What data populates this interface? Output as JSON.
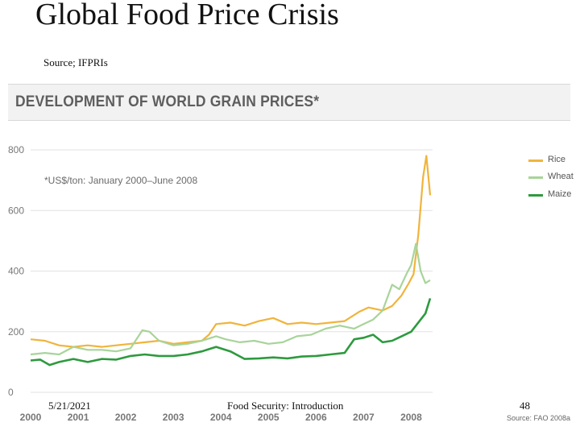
{
  "slide": {
    "title": "Global Food Price Crisis",
    "source": "Source; IFPRIs",
    "date": "5/21/2021",
    "footer_center": "Food Security: Introduction",
    "page_number": "48"
  },
  "colors": {
    "rice": "#f0b43c",
    "wheat": "#a8d49a",
    "maize": "#2e9a3e",
    "banner_bg": "#f2f2f2",
    "banner_text": "#5e5e5e",
    "grid": "#e2e2e2"
  },
  "chart_data": {
    "type": "line",
    "title": "DEVELOPMENT OF WORLD GRAIN PRICES*",
    "subtitle": "*US$/ton: January 2000–June 2008",
    "credit": "Source: FAO 2008a",
    "y_ticks": [
      "0",
      "200",
      "400",
      "600",
      "800"
    ],
    "ylim": [
      0,
      800
    ],
    "x_ticks": [
      "2000",
      "2001",
      "2002",
      "2003",
      "2004",
      "2005",
      "2006",
      "2007",
      "2008"
    ],
    "xlim": [
      2000.0,
      2008.45
    ],
    "grid": true,
    "legend_position": "right",
    "series": [
      {
        "name": "Rice",
        "x": [
          2000.0,
          2000.3,
          2000.6,
          2000.9,
          2001.2,
          2001.5,
          2001.8,
          2002.1,
          2002.4,
          2002.7,
          2003.0,
          2003.3,
          2003.6,
          2003.75,
          2003.9,
          2004.2,
          2004.5,
          2004.8,
          2005.1,
          2005.4,
          2005.7,
          2006.0,
          2006.3,
          2006.6,
          2006.9,
          2007.1,
          2007.4,
          2007.6,
          2007.8,
          2007.95,
          2008.05,
          2008.15,
          2008.25,
          2008.32,
          2008.4
        ],
        "y": [
          175,
          170,
          155,
          150,
          155,
          150,
          155,
          160,
          165,
          170,
          160,
          165,
          170,
          190,
          225,
          230,
          220,
          235,
          245,
          225,
          230,
          225,
          230,
          235,
          265,
          280,
          270,
          285,
          320,
          360,
          390,
          520,
          710,
          780,
          650
        ]
      },
      {
        "name": "Wheat",
        "x": [
          2000.0,
          2000.3,
          2000.6,
          2000.9,
          2001.2,
          2001.5,
          2001.8,
          2002.1,
          2002.35,
          2002.5,
          2002.7,
          2003.0,
          2003.3,
          2003.6,
          2003.9,
          2004.1,
          2004.4,
          2004.7,
          2005.0,
          2005.3,
          2005.6,
          2005.9,
          2006.2,
          2006.5,
          2006.8,
          2007.0,
          2007.2,
          2007.4,
          2007.6,
          2007.75,
          2007.9,
          2008.0,
          2008.1,
          2008.2,
          2008.3,
          2008.4
        ],
        "y": [
          125,
          130,
          125,
          150,
          140,
          140,
          135,
          145,
          205,
          200,
          170,
          155,
          160,
          170,
          185,
          175,
          165,
          170,
          160,
          165,
          185,
          190,
          210,
          220,
          210,
          225,
          240,
          270,
          355,
          340,
          390,
          420,
          490,
          400,
          360,
          370
        ]
      },
      {
        "name": "Maize",
        "x": [
          2000.0,
          2000.2,
          2000.4,
          2000.6,
          2000.9,
          2001.2,
          2001.5,
          2001.8,
          2002.1,
          2002.4,
          2002.7,
          2003.0,
          2003.3,
          2003.6,
          2003.9,
          2004.2,
          2004.5,
          2004.8,
          2005.1,
          2005.4,
          2005.7,
          2006.0,
          2006.3,
          2006.6,
          2006.8,
          2007.0,
          2007.2,
          2007.4,
          2007.6,
          2007.8,
          2008.0,
          2008.2,
          2008.3,
          2008.4
        ],
        "y": [
          105,
          108,
          90,
          100,
          110,
          100,
          110,
          108,
          120,
          125,
          120,
          120,
          125,
          135,
          150,
          135,
          110,
          112,
          115,
          112,
          118,
          120,
          125,
          130,
          175,
          180,
          190,
          165,
          170,
          185,
          200,
          240,
          260,
          310
        ]
      }
    ]
  }
}
